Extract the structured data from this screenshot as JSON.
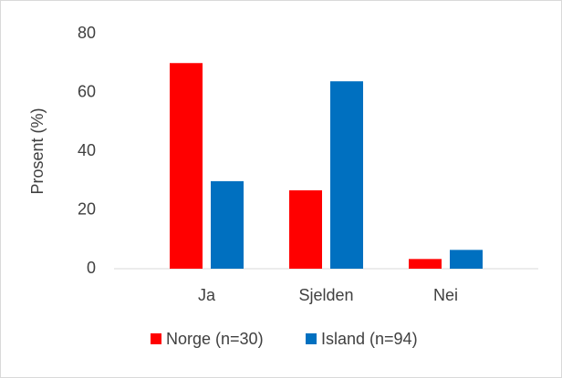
{
  "chart_data": {
    "type": "bar",
    "y_label": "Prosent (%)",
    "categories": [
      "Ja",
      "Sjelden",
      "Nei"
    ],
    "series": [
      {
        "name": "Norge (n=30)",
        "color": "#ff0000",
        "values": [
          70,
          26.7,
          3.3
        ]
      },
      {
        "name": "Island (n=94)",
        "color": "#0070c0",
        "values": [
          29.8,
          63.8,
          6.4
        ]
      }
    ],
    "ylim": [
      0,
      80
    ],
    "yticks": [
      0,
      20,
      40,
      60,
      80
    ],
    "grid": false,
    "legend": "bottom"
  }
}
